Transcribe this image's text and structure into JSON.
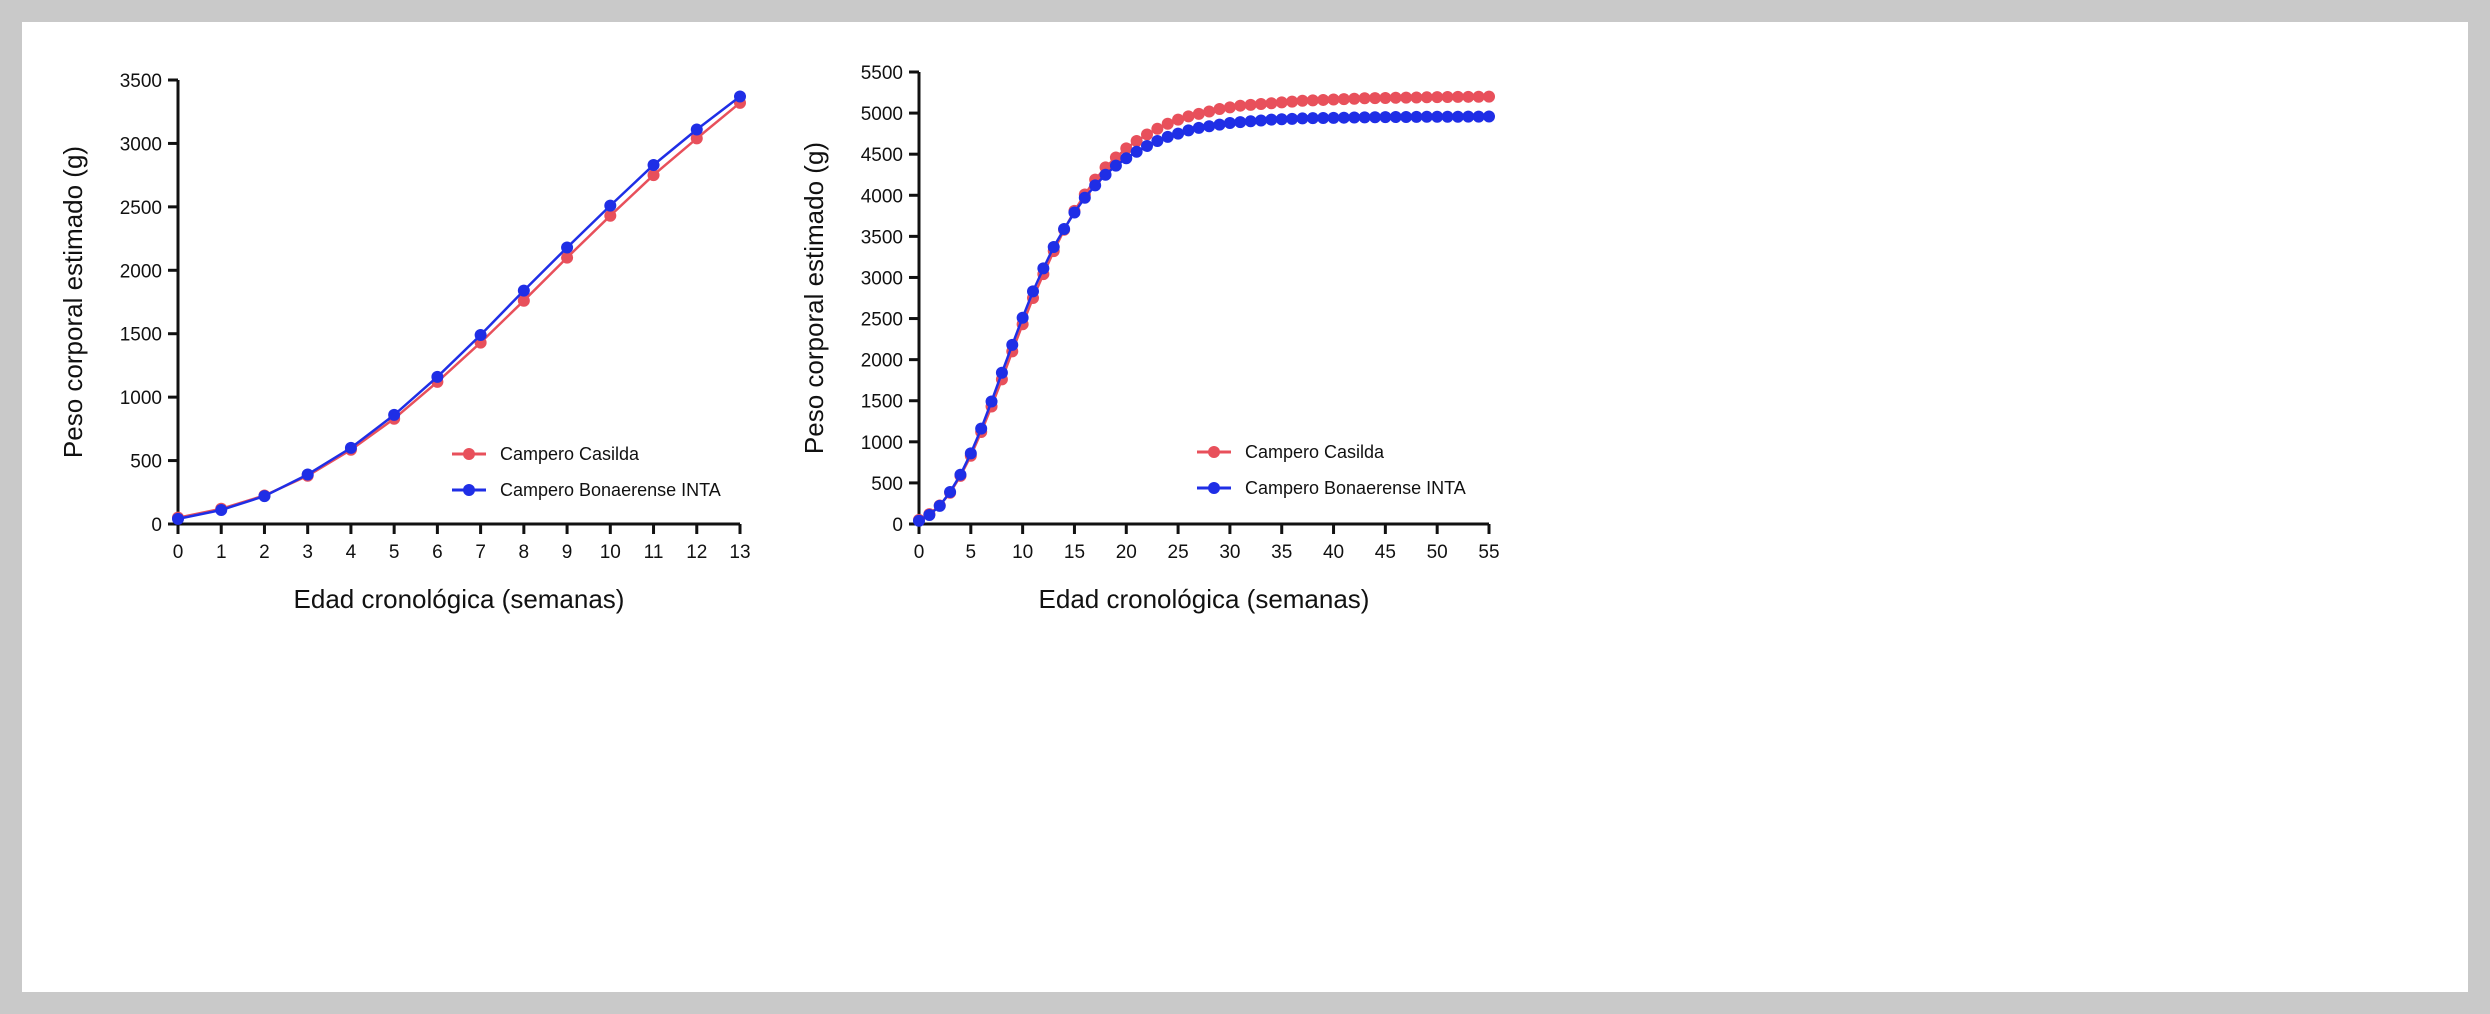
{
  "colors": {
    "casilda": "#e8505b",
    "bonaerense": "#1f2ee6"
  },
  "chart_data": [
    {
      "type": "line",
      "xlabel": "Edad cronológica (semanas)",
      "ylabel": "Peso corporal estimado (g)",
      "xlim": [
        0,
        13
      ],
      "ylim": [
        0,
        3500
      ],
      "xticks": [
        0,
        1,
        2,
        3,
        4,
        5,
        6,
        7,
        8,
        9,
        10,
        11,
        12,
        13
      ],
      "yticks": [
        0,
        500,
        1000,
        1500,
        2000,
        2500,
        3000,
        3500
      ],
      "grid": false,
      "legend_position": "bottom-right",
      "series": [
        {
          "name": "Campero Casilda",
          "color_key": "casilda",
          "x": [
            0,
            1,
            2,
            3,
            4,
            5,
            6,
            7,
            8,
            9,
            10,
            11,
            12,
            13
          ],
          "y": [
            50,
            120,
            225,
            380,
            585,
            830,
            1120,
            1430,
            1760,
            2100,
            2430,
            2750,
            3040,
            3320
          ]
        },
        {
          "name": "Campero Bonaerense INTA",
          "color_key": "bonaerense",
          "x": [
            0,
            1,
            2,
            3,
            4,
            5,
            6,
            7,
            8,
            9,
            10,
            11,
            12,
            13
          ],
          "y": [
            40,
            110,
            220,
            390,
            600,
            860,
            1160,
            1490,
            1840,
            2180,
            2510,
            2830,
            3110,
            3370
          ]
        }
      ]
    },
    {
      "type": "line",
      "xlabel": "Edad cronológica (semanas)",
      "ylabel": "Peso corporal estimado (g)",
      "xlim": [
        0,
        55
      ],
      "ylim": [
        0,
        5500
      ],
      "xticks": [
        0,
        5,
        10,
        15,
        20,
        25,
        30,
        35,
        40,
        45,
        50,
        55
      ],
      "yticks": [
        0,
        500,
        1000,
        1500,
        2000,
        2500,
        3000,
        3500,
        4000,
        4500,
        5000,
        5500
      ],
      "grid": false,
      "legend_position": "bottom-right",
      "series": [
        {
          "name": "Campero Casilda",
          "color_key": "casilda",
          "x_start": 0,
          "x_step": 1,
          "y": [
            50,
            120,
            225,
            380,
            585,
            830,
            1120,
            1430,
            1760,
            2100,
            2430,
            2750,
            3040,
            3320,
            3580,
            3810,
            4010,
            4190,
            4340,
            4460,
            4570,
            4660,
            4740,
            4810,
            4870,
            4920,
            4960,
            4990,
            5020,
            5050,
            5070,
            5090,
            5100,
            5110,
            5120,
            5130,
            5140,
            5150,
            5155,
            5160,
            5165,
            5170,
            5175,
            5180,
            5182,
            5184,
            5186,
            5188,
            5190,
            5192,
            5194,
            5196,
            5197,
            5198,
            5199,
            5200
          ]
        },
        {
          "name": "Campero Bonaerense INTA",
          "color_key": "bonaerense",
          "x_start": 0,
          "x_step": 1,
          "y": [
            40,
            110,
            220,
            390,
            600,
            860,
            1160,
            1490,
            1840,
            2180,
            2510,
            2830,
            3110,
            3370,
            3590,
            3790,
            3970,
            4120,
            4250,
            4360,
            4450,
            4530,
            4600,
            4660,
            4710,
            4750,
            4790,
            4820,
            4840,
            4860,
            4880,
            4890,
            4900,
            4910,
            4920,
            4925,
            4930,
            4935,
            4938,
            4940,
            4942,
            4944,
            4946,
            4948,
            4950,
            4951,
            4952,
            4953,
            4954,
            4955,
            4955,
            4956,
            4956,
            4957,
            4957,
            4958
          ]
        }
      ]
    }
  ]
}
